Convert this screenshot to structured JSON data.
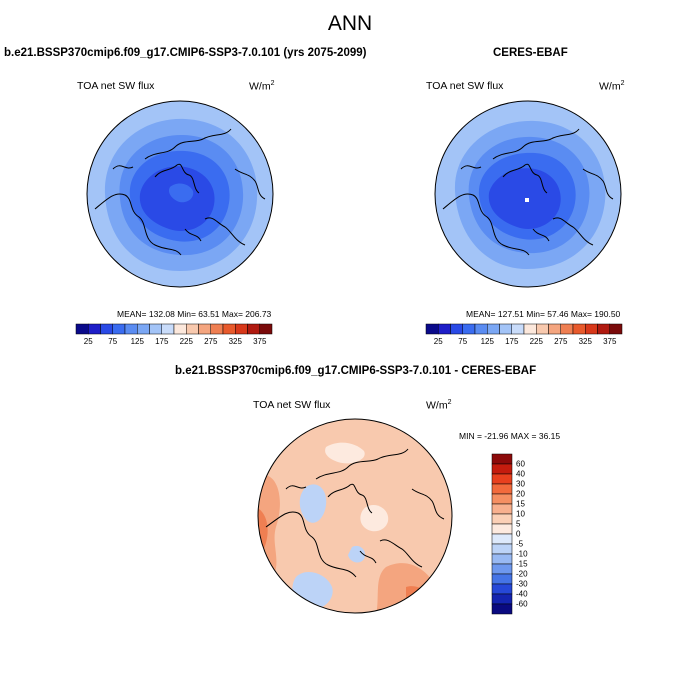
{
  "main_title": "ANN",
  "panels": {
    "model": {
      "title": "b.e21.BSSP370cmip6.f09_g17.CMIP6-SSP3-7.0.101 (yrs 2075-2099)",
      "variable": "TOA net SW flux",
      "units_base": "W/m",
      "units_exp": "2",
      "stats": "MEAN= 132.08  Min=  63.51  Max= 206.73"
    },
    "obs": {
      "title": "CERES-EBAF",
      "variable": "TOA net SW flux",
      "units_base": "W/m",
      "units_exp": "2",
      "stats": "MEAN= 127.51  Min=  57.46  Max= 190.50"
    },
    "diff": {
      "title": "b.e21.BSSP370cmip6.f09_g17.CMIP6-SSP3-7.0.101 - CERES-EBAF",
      "variable": "TOA net SW flux",
      "units_base": "W/m",
      "units_exp": "2",
      "stats": "MIN = -21.96 MAX =  36.15"
    }
  },
  "colorbar_abs": {
    "labels": [
      "25",
      "75",
      "125",
      "175",
      "225",
      "275",
      "325",
      "375"
    ],
    "colors": [
      "#0a0a8a",
      "#1e1ec8",
      "#2a4ae6",
      "#3a6cf0",
      "#5a8cf2",
      "#7ba7f4",
      "#a3c4f7",
      "#c9dcfa",
      "#fce8dc",
      "#f8c9ae",
      "#f4a57f",
      "#ef7f52",
      "#e85a2c",
      "#d8381a",
      "#b01a10",
      "#7a0a0a"
    ]
  },
  "colorbar_diff": {
    "labels": [
      "60",
      "40",
      "30",
      "20",
      "15",
      "10",
      "5",
      "0",
      "-5",
      "-10",
      "-15",
      "-20",
      "-30",
      "-40",
      "-60"
    ],
    "colors": [
      "#8c0a0a",
      "#c41c0e",
      "#e8401e",
      "#f26a3c",
      "#f58f62",
      "#f8b08e",
      "#fbd0b6",
      "#fdeadf",
      "#dde9fb",
      "#bcd3f7",
      "#98b9f3",
      "#6e98ee",
      "#4574e6",
      "#2648d8",
      "#1424b0",
      "#0a0a80"
    ]
  },
  "map_colors": {
    "outer": "#a3c4f7",
    "mid": "#7ba7f4",
    "inner": "#5a8cf2",
    "core": "#3a6cf0",
    "deep": "#2a4ae6",
    "diff_base": "#f8c9ae",
    "diff_warm": "#f4a57f",
    "diff_hot": "#ef7f52",
    "diff_cool": "#bcd3f7",
    "diff_neutral": "#fdeadf"
  }
}
